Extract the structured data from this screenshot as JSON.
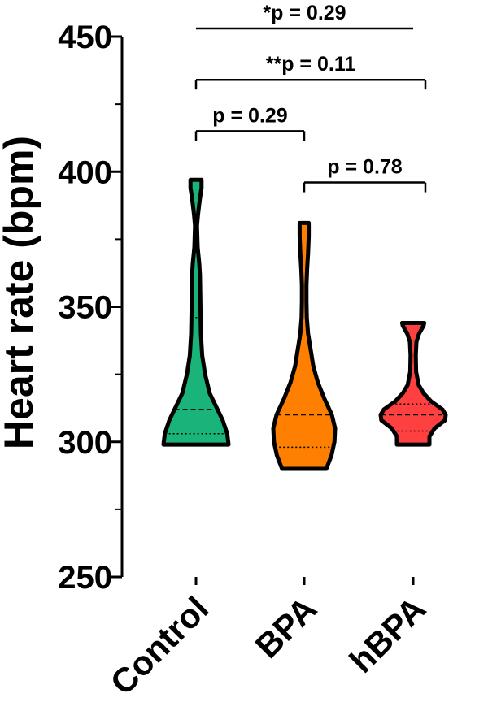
{
  "chart_data": {
    "type": "violin",
    "ylabel": "Heart rate (bpm)",
    "xlabel": "",
    "ylim": [
      250,
      450
    ],
    "yticks": [
      250,
      300,
      350,
      400,
      450
    ],
    "yminor_step": 25,
    "grid": false,
    "categories": [
      "Control",
      "BPA",
      "hBPA"
    ],
    "series": [
      {
        "category": "Control",
        "color": "#1ab37a",
        "min": 299,
        "max": 397,
        "median": 312,
        "q1": 303,
        "q3": 346,
        "density": [
          [
            299,
            1.0
          ],
          [
            303,
            0.96
          ],
          [
            308,
            0.82
          ],
          [
            312,
            0.66
          ],
          [
            318,
            0.42
          ],
          [
            325,
            0.28
          ],
          [
            332,
            0.19
          ],
          [
            340,
            0.15
          ],
          [
            347,
            0.14
          ],
          [
            355,
            0.13
          ],
          [
            362,
            0.12
          ],
          [
            366,
            0.1
          ],
          [
            372,
            0.05
          ],
          [
            380,
            0.03
          ],
          [
            384,
            0.06
          ],
          [
            390,
            0.12
          ],
          [
            394,
            0.17
          ],
          [
            397,
            0.17
          ]
        ]
      },
      {
        "category": "BPA",
        "color": "#ff8000",
        "min": 290,
        "max": 381,
        "median": 310,
        "q1": 298,
        "q3": 346,
        "density": [
          [
            290,
            0.68
          ],
          [
            295,
            0.84
          ],
          [
            300,
            0.93
          ],
          [
            305,
            0.95
          ],
          [
            310,
            0.85
          ],
          [
            316,
            0.62
          ],
          [
            322,
            0.42
          ],
          [
            328,
            0.28
          ],
          [
            334,
            0.2
          ],
          [
            340,
            0.12
          ],
          [
            346,
            0.08
          ],
          [
            352,
            0.07
          ],
          [
            358,
            0.07
          ],
          [
            364,
            0.09
          ],
          [
            370,
            0.12
          ],
          [
            376,
            0.14
          ],
          [
            381,
            0.14
          ]
        ]
      },
      {
        "category": "hBPA",
        "color": "#ff4040",
        "min": 299,
        "max": 344,
        "median": 310,
        "q1": 304,
        "q3": 314,
        "density": [
          [
            299,
            0.5
          ],
          [
            302,
            0.5
          ],
          [
            305,
            0.66
          ],
          [
            308,
            0.98
          ],
          [
            310,
            1.0
          ],
          [
            312,
            0.9
          ],
          [
            315,
            0.55
          ],
          [
            318,
            0.32
          ],
          [
            321,
            0.17
          ],
          [
            326,
            0.09
          ],
          [
            332,
            0.08
          ],
          [
            337,
            0.1
          ],
          [
            340,
            0.18
          ],
          [
            343,
            0.32
          ],
          [
            344,
            0.34
          ]
        ]
      }
    ],
    "comparisons": [
      {
        "label": "*p = 0.29",
        "from": 0,
        "to": 2,
        "y": 453,
        "caps": false
      },
      {
        "label": "**p = 0.11",
        "from": 0,
        "to": 2,
        "y": 434,
        "caps": true
      },
      {
        "label": "p = 0.29",
        "from": 0,
        "to": 1,
        "y": 415,
        "caps": true
      },
      {
        "label": "p = 0.78",
        "from": 1,
        "to": 2,
        "y": 396,
        "caps": true
      }
    ]
  }
}
